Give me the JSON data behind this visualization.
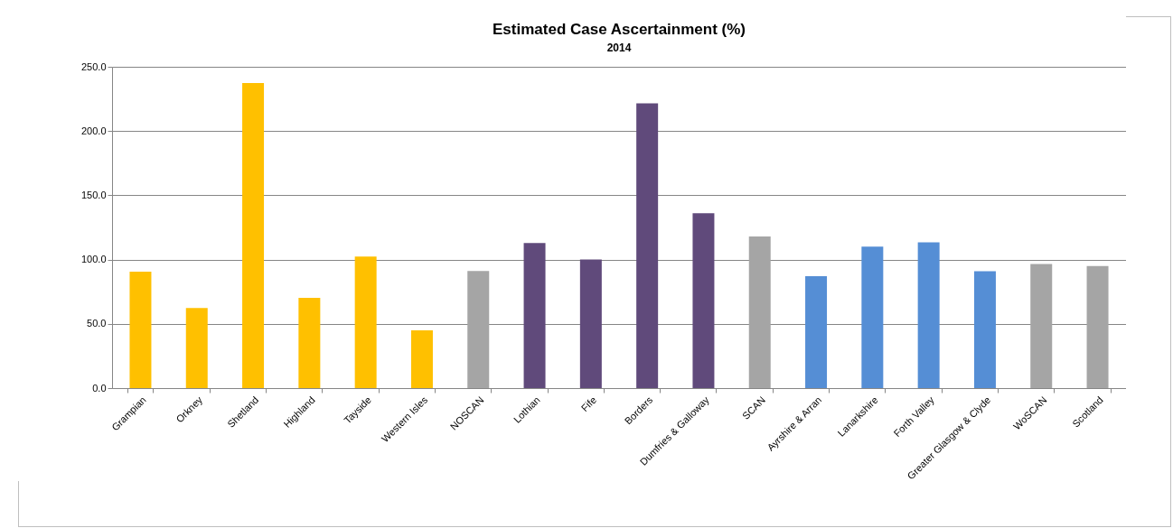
{
  "chart_data": {
    "type": "bar",
    "title": "Estimated Case Ascertainment (%)",
    "subtitle": "2014",
    "categories": [
      "Grampian",
      "Orkney",
      "Shetland",
      "Highland",
      "Tayside",
      "Western Isles",
      "NOSCAN",
      "Lothian",
      "Fife",
      "Borders",
      "Dumfries & Galloway",
      "SCAN",
      "Ayrshire & Arran",
      "Lanarkshire",
      "Forth Valley",
      "Greater Glasgow & Clyde",
      "WoSCAN",
      "Scotland"
    ],
    "values": [
      90.6,
      62.4,
      237.4,
      70.2,
      102.4,
      45.0,
      91.2,
      112.9,
      100.0,
      221.5,
      136.0,
      118.0,
      87.0,
      110.0,
      113.4,
      91.0,
      96.5,
      95.0
    ],
    "colors": [
      "#ffc000",
      "#ffc000",
      "#ffc000",
      "#ffc000",
      "#ffc000",
      "#ffc000",
      "#a5a5a5",
      "#604a7b",
      "#604a7b",
      "#604a7b",
      "#604a7b",
      "#a5a5a5",
      "#558ed5",
      "#558ed5",
      "#558ed5",
      "#558ed5",
      "#a5a5a5",
      "#a5a5a5"
    ],
    "ylim": [
      0,
      250
    ],
    "yticks": [
      {
        "value": 0,
        "label": "0.0"
      },
      {
        "value": 50,
        "label": "50.0"
      },
      {
        "value": 100,
        "label": "100.0"
      },
      {
        "value": 150,
        "label": "150.0"
      },
      {
        "value": 200,
        "label": "200.0"
      },
      {
        "value": 250,
        "label": "250.0"
      }
    ],
    "grid": "y"
  }
}
